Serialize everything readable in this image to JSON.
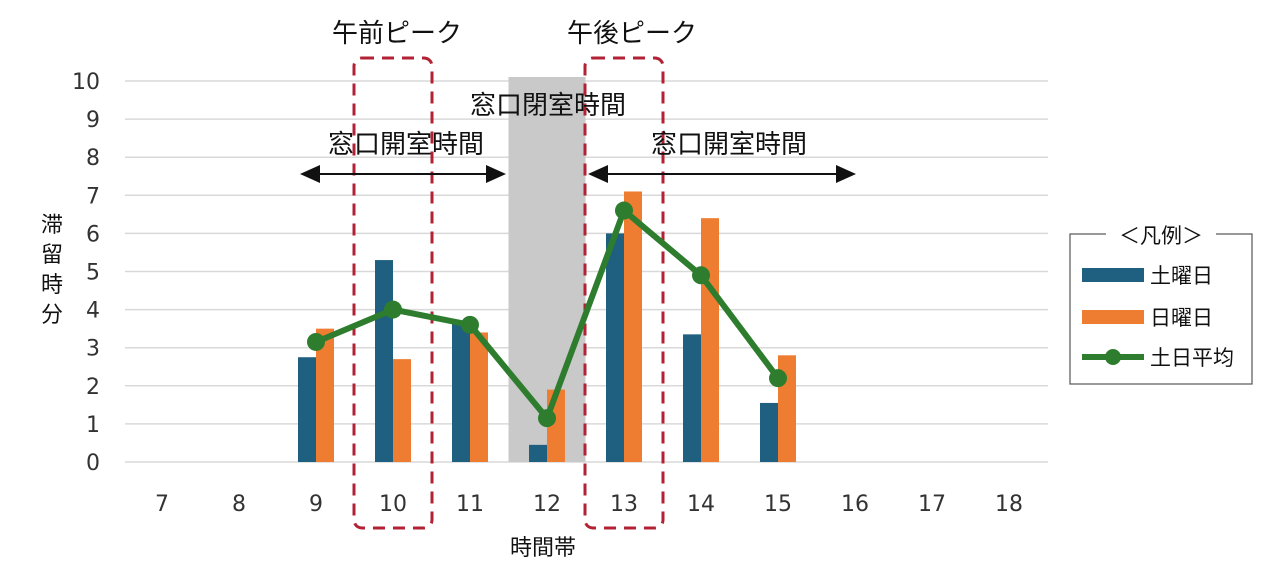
{
  "chart_data": {
    "type": "bar",
    "categories": [
      "7",
      "8",
      "9",
      "10",
      "11",
      "12",
      "13",
      "14",
      "15",
      "16",
      "17",
      "18"
    ],
    "series": [
      {
        "name": "土曜日",
        "kind": "bar",
        "color": "#1f5f7f",
        "values": [
          0,
          0,
          2.75,
          5.3,
          3.7,
          0.45,
          6.0,
          3.35,
          1.55,
          0,
          0,
          0
        ]
      },
      {
        "name": "日曜日",
        "kind": "bar",
        "color": "#ee7d31",
        "values": [
          0,
          0,
          3.5,
          2.7,
          3.4,
          1.9,
          7.1,
          6.4,
          2.8,
          0,
          0,
          0
        ]
      },
      {
        "name": "土日平均",
        "kind": "line",
        "color": "#2e7d2e",
        "values": [
          null,
          null,
          3.15,
          4.0,
          3.6,
          1.15,
          6.6,
          4.9,
          2.2,
          null,
          null,
          null
        ]
      }
    ],
    "yticks": [
      "0",
      "1",
      "2",
      "3",
      "4",
      "5",
      "6",
      "7",
      "8",
      "9",
      "10"
    ],
    "ylim": [
      0,
      10
    ],
    "xlabel": "時間帯",
    "ylabel": "滞留時分",
    "grid": true,
    "legend": {
      "title": "＜凡例＞",
      "placement": "right"
    },
    "annotations": {
      "am_peak": "午前ピーク",
      "pm_peak": "午後ピーク",
      "closed_label": "窓口閉室時間",
      "open_label_am": "窓口開室時間",
      "open_label_pm": "窓口開室時間"
    }
  }
}
